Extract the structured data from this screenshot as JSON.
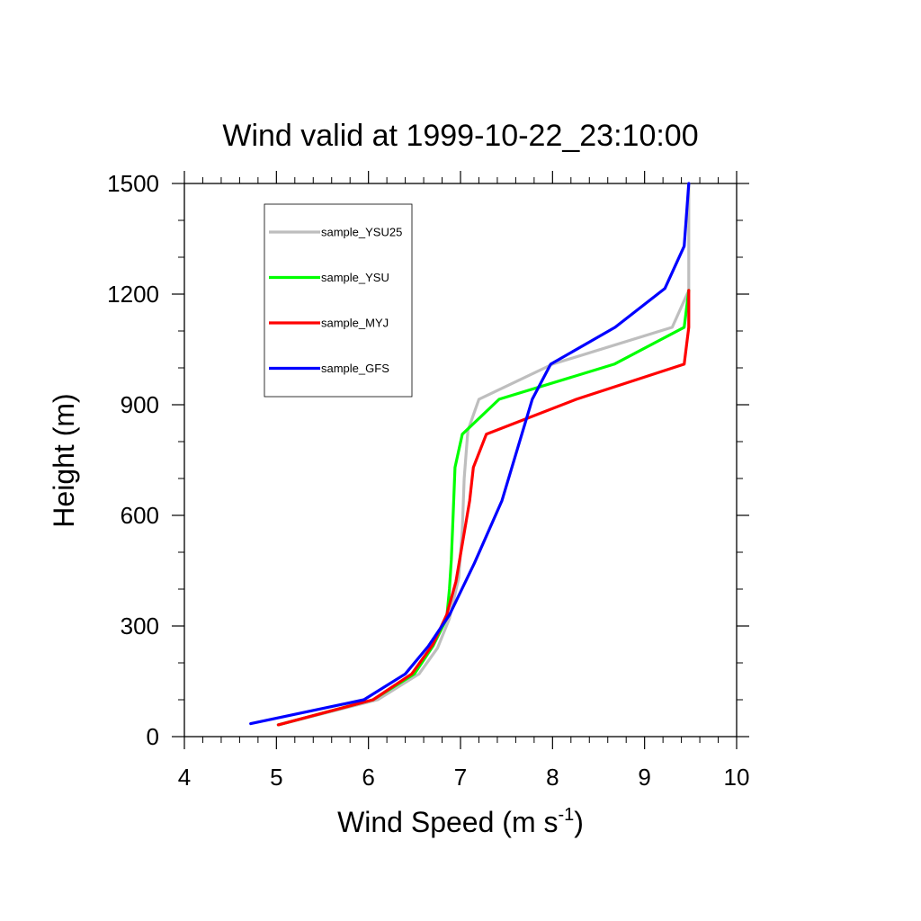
{
  "chart_data": {
    "type": "line",
    "title": "Wind valid at 1999-10-22_23:10:00",
    "xlabel": "Wind Speed (m s",
    "xlabel_sup": "-1",
    "xlabel_end": ")",
    "ylabel": "Height (m)",
    "xlim": [
      4,
      10
    ],
    "ylim": [
      0,
      1500
    ],
    "x_ticks": [
      4,
      5,
      6,
      7,
      8,
      9,
      10
    ],
    "y_ticks": [
      0,
      300,
      600,
      900,
      1200,
      1500
    ],
    "legend_position": "top-left",
    "series": [
      {
        "name": "sample_YSU25",
        "color": "#bebebe",
        "points": [
          [
            5.02,
            32
          ],
          [
            6.1,
            100
          ],
          [
            6.55,
            170
          ],
          [
            6.75,
            240
          ],
          [
            6.88,
            320
          ],
          [
            6.98,
            430
          ],
          [
            7.02,
            560
          ],
          [
            7.04,
            700
          ],
          [
            7.08,
            830
          ],
          [
            7.2,
            915
          ],
          [
            8.0,
            1010
          ],
          [
            9.3,
            1110
          ],
          [
            9.48,
            1210
          ],
          [
            9.48,
            1500
          ]
        ]
      },
      {
        "name": "sample_YSU",
        "color": "#00ff00",
        "points": [
          [
            5.02,
            32
          ],
          [
            6.05,
            100
          ],
          [
            6.5,
            170
          ],
          [
            6.7,
            245
          ],
          [
            6.85,
            320
          ],
          [
            6.88,
            400
          ],
          [
            6.9,
            480
          ],
          [
            6.92,
            600
          ],
          [
            6.94,
            730
          ],
          [
            7.02,
            820
          ],
          [
            7.42,
            915
          ],
          [
            8.67,
            1010
          ],
          [
            9.43,
            1110
          ],
          [
            9.48,
            1210
          ]
        ]
      },
      {
        "name": "sample_MYJ",
        "color": "#ff0000",
        "points": [
          [
            5.02,
            32
          ],
          [
            6.05,
            100
          ],
          [
            6.47,
            170
          ],
          [
            6.7,
            250
          ],
          [
            6.85,
            330
          ],
          [
            6.95,
            420
          ],
          [
            7.1,
            640
          ],
          [
            7.14,
            730
          ],
          [
            7.28,
            820
          ],
          [
            8.26,
            915
          ],
          [
            9.43,
            1010
          ],
          [
            9.48,
            1110
          ],
          [
            9.48,
            1210
          ]
        ]
      },
      {
        "name": "sample_GFS",
        "color": "#0000ff",
        "points": [
          [
            4.72,
            35
          ],
          [
            5.95,
            100
          ],
          [
            6.4,
            170
          ],
          [
            6.65,
            245
          ],
          [
            6.88,
            330
          ],
          [
            7.15,
            470
          ],
          [
            7.45,
            640
          ],
          [
            7.78,
            915
          ],
          [
            7.98,
            1010
          ],
          [
            8.68,
            1110
          ],
          [
            9.22,
            1215
          ],
          [
            9.43,
            1330
          ],
          [
            9.48,
            1500
          ]
        ]
      }
    ]
  }
}
